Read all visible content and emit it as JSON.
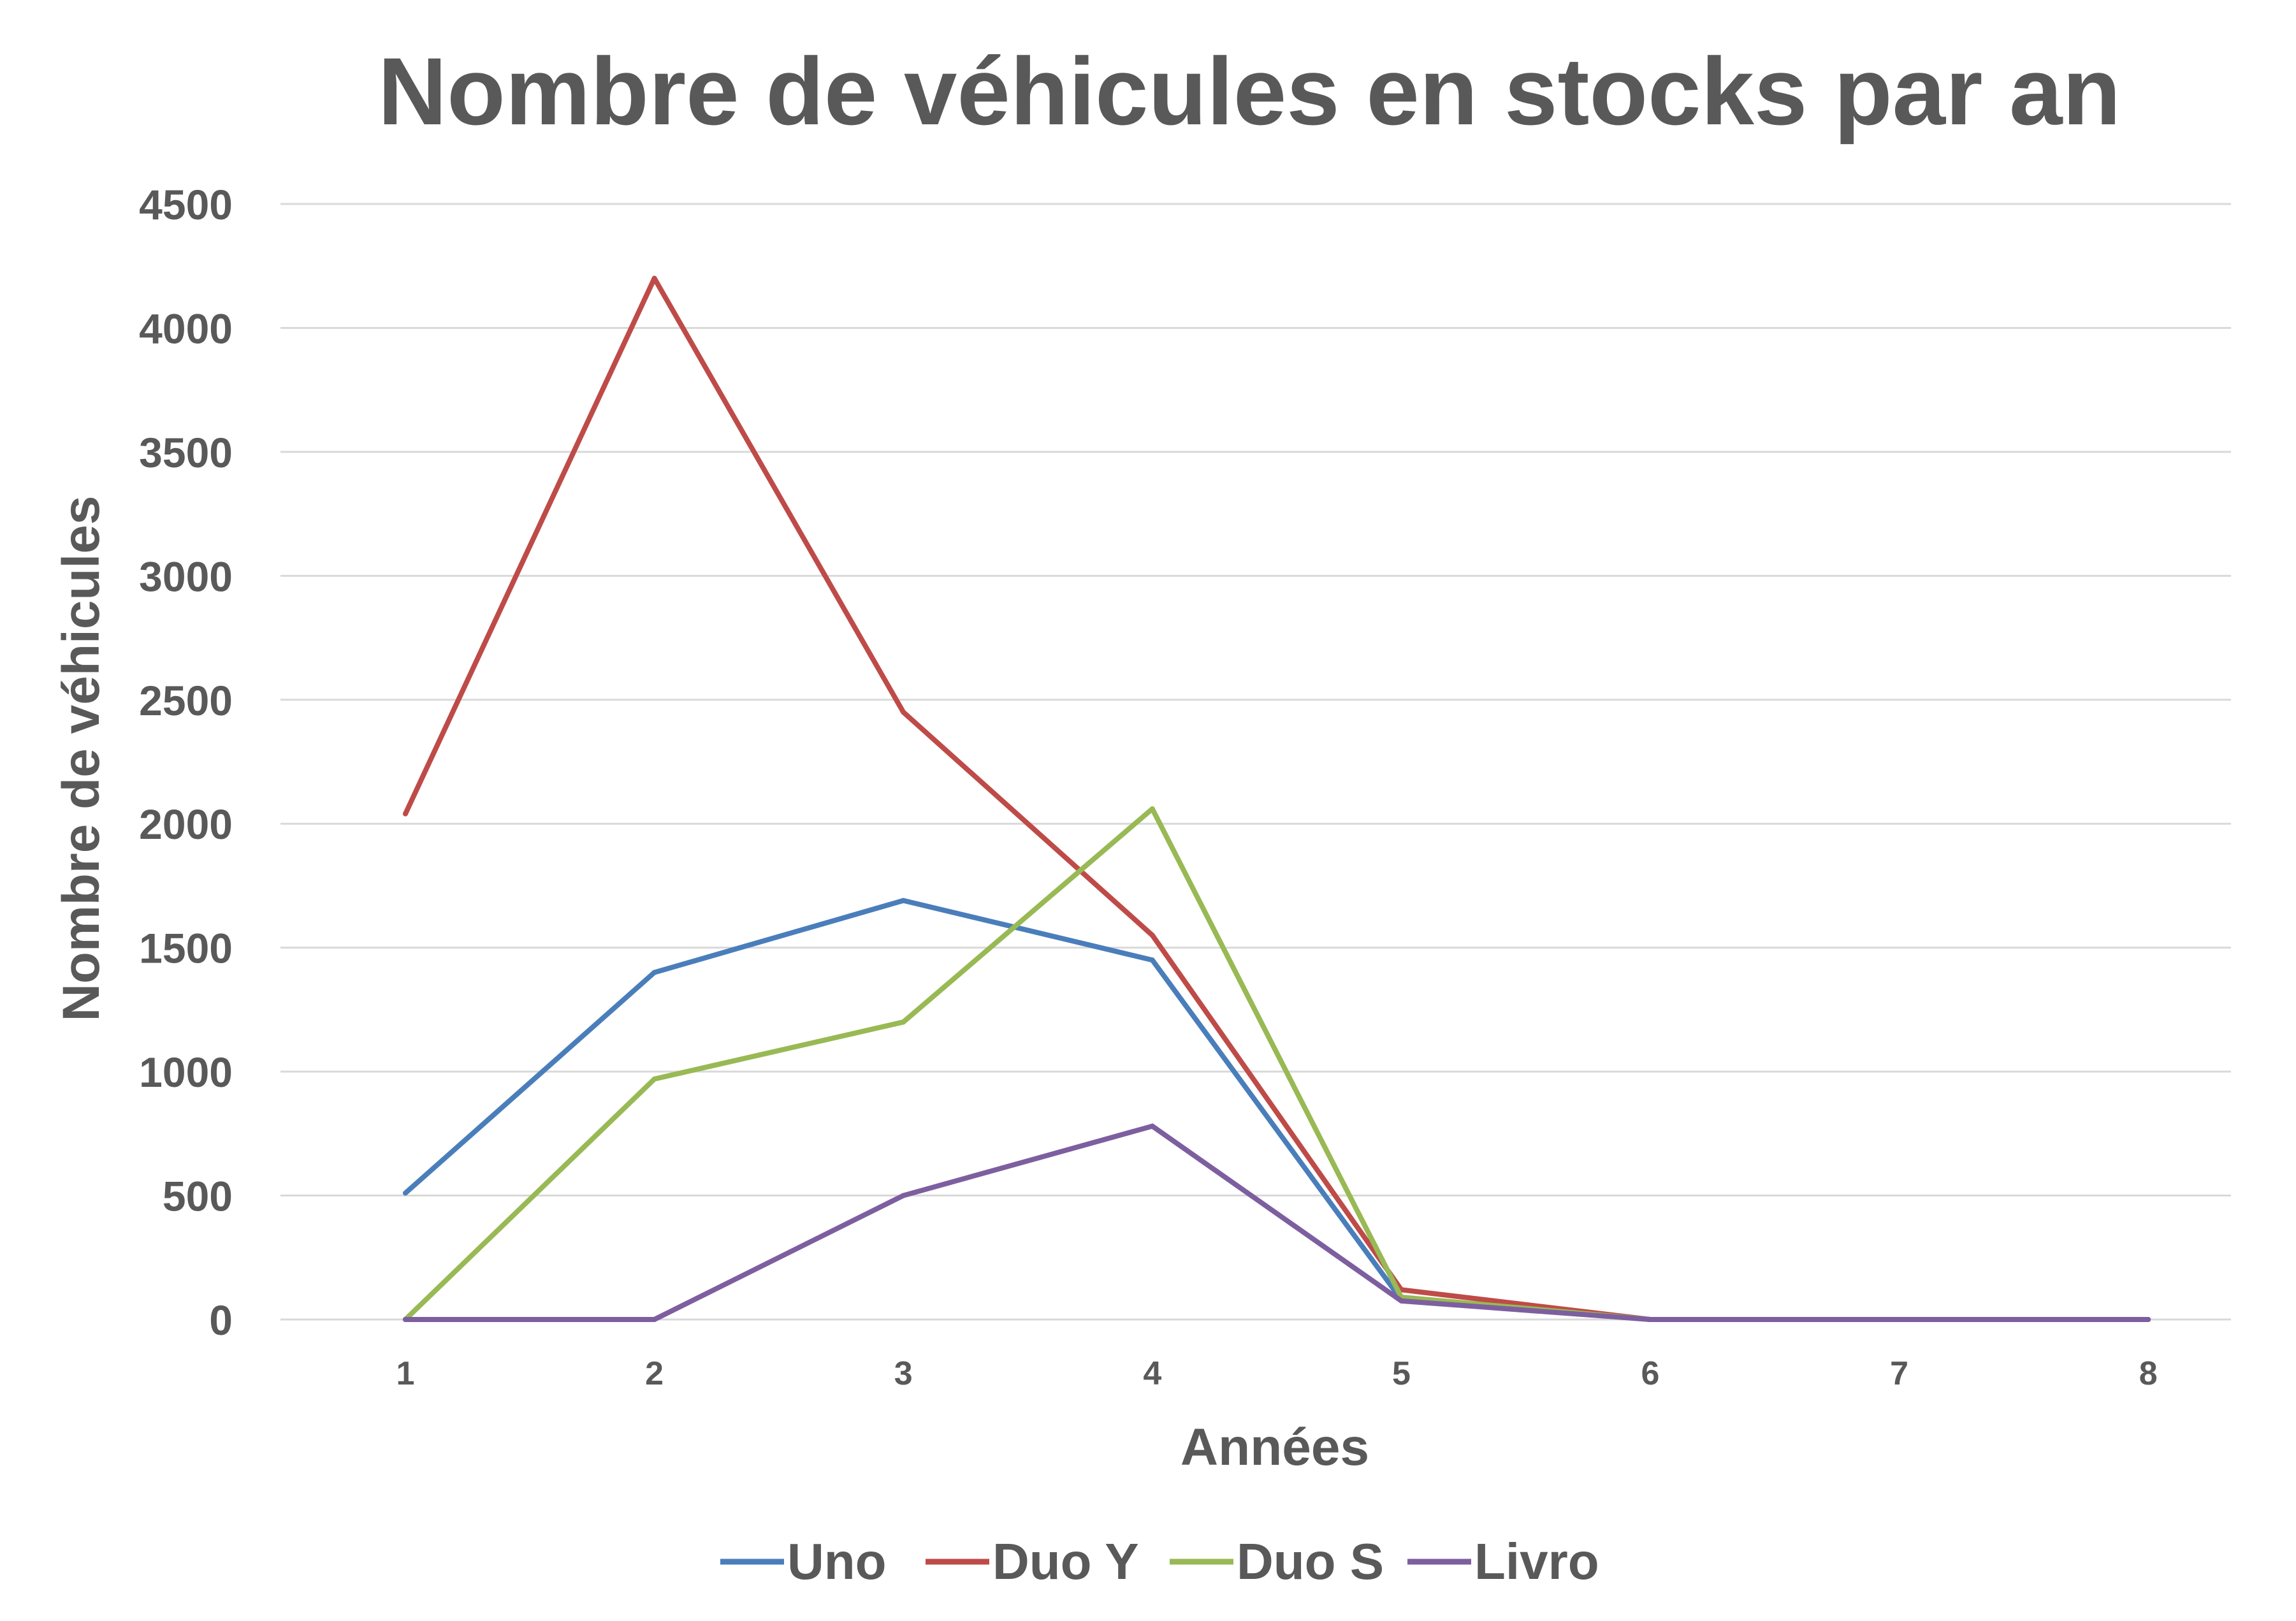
{
  "chart_data": {
    "type": "line",
    "title": "Nombre de véhicules en stocks par an",
    "xlabel": "Années",
    "ylabel": "Nombre de véhicules",
    "categories": [
      "1",
      "2",
      "3",
      "4",
      "5",
      "6",
      "7",
      "8"
    ],
    "ylim": [
      0,
      4500
    ],
    "yticks": [
      "0",
      "500",
      "1000",
      "1500",
      "2000",
      "2500",
      "3000",
      "3500",
      "4000",
      "4500"
    ],
    "grid": "horizontal",
    "legend_position": "bottom",
    "series": [
      {
        "name": "Uno",
        "color": "#4a7ebb",
        "values": [
          510,
          1400,
          1690,
          1450,
          80,
          0,
          null,
          null
        ]
      },
      {
        "name": "Duo Y",
        "color": "#be4b48",
        "values": [
          2040,
          4200,
          2450,
          1550,
          120,
          0,
          null,
          null
        ]
      },
      {
        "name": "Duo S",
        "color": "#98b954",
        "values": [
          0,
          970,
          1200,
          2060,
          90,
          0,
          null,
          null
        ]
      },
      {
        "name": "Livro",
        "color": "#7d5fa0",
        "values": [
          0,
          0,
          500,
          780,
          75,
          0,
          0,
          0
        ]
      }
    ]
  }
}
